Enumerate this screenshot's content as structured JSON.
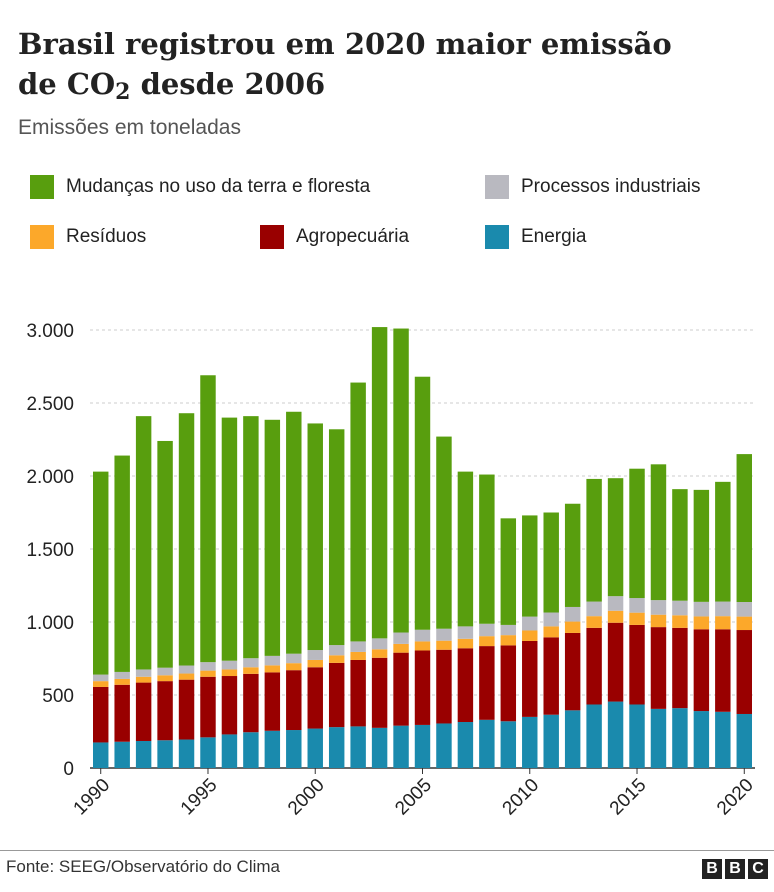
{
  "header": {
    "title_line1": "Brasil registrou em 2020 maior emissão",
    "title_line2_pre": "de CO",
    "title_line2_sub": "2",
    "title_line2_post": " desde 2006",
    "subtitle": "Emissões em toneladas"
  },
  "legend": [
    {
      "label": "Mudanças no uso da terra e floresta",
      "color": "#589e0e"
    },
    {
      "label": "Processos industriais",
      "color": "#b9b9c0"
    },
    {
      "label": "Resíduos",
      "color": "#fca82a"
    },
    {
      "label": "Agropecuária",
      "color": "#990000"
    },
    {
      "label": "Energia",
      "color": "#1a8aad"
    }
  ],
  "footer": {
    "source": "Fonte: SEEG/Observatório do Clima",
    "logo": [
      "B",
      "B",
      "C"
    ]
  },
  "chart_data": {
    "type": "bar",
    "stacked": true,
    "title": "Brasil registrou em 2020 maior emissão de CO2 desde 2006",
    "subtitle": "Emissões em toneladas",
    "ylim": [
      0,
      3000
    ],
    "yticks": [
      0,
      500,
      1000,
      1500,
      2000,
      2500,
      3000
    ],
    "ytick_labels": [
      "0",
      "500",
      "1.000",
      "1.500",
      "2.000",
      "2.500",
      "3.000"
    ],
    "xtick_labels": [
      "1990",
      "1995",
      "2000",
      "2005",
      "2010",
      "2015",
      "2020"
    ],
    "categories": [
      "1990",
      "1991",
      "1992",
      "1993",
      "1994",
      "1995",
      "1996",
      "1997",
      "1998",
      "1999",
      "2000",
      "2001",
      "2002",
      "2003",
      "2004",
      "2005",
      "2006",
      "2007",
      "2008",
      "2009",
      "2010",
      "2011",
      "2012",
      "2013",
      "2014",
      "2015",
      "2016",
      "2017",
      "2018",
      "2019",
      "2020"
    ],
    "series": [
      {
        "name": "Energia",
        "color": "#1a8aad",
        "values": [
          175,
          180,
          185,
          190,
          195,
          210,
          230,
          245,
          255,
          260,
          270,
          280,
          285,
          275,
          290,
          295,
          305,
          315,
          330,
          320,
          350,
          365,
          395,
          435,
          455,
          435,
          405,
          410,
          390,
          385,
          370
        ]
      },
      {
        "name": "Agropecuária",
        "color": "#990000",
        "values": [
          380,
          390,
          400,
          405,
          410,
          415,
          400,
          400,
          400,
          410,
          420,
          440,
          455,
          480,
          500,
          510,
          505,
          505,
          505,
          520,
          520,
          530,
          530,
          525,
          540,
          545,
          560,
          550,
          560,
          565,
          575
        ]
      },
      {
        "name": "Resíduos",
        "color": "#fca82a",
        "values": [
          40,
          40,
          40,
          40,
          42,
          42,
          45,
          45,
          48,
          48,
          50,
          52,
          55,
          58,
          60,
          62,
          62,
          65,
          68,
          70,
          72,
          75,
          78,
          80,
          82,
          84,
          85,
          86,
          88,
          90,
          92
        ]
      },
      {
        "name": "Processos industriais",
        "color": "#b9b9c0",
        "values": [
          45,
          48,
          50,
          52,
          55,
          58,
          60,
          62,
          65,
          65,
          68,
          70,
          72,
          75,
          78,
          80,
          82,
          85,
          85,
          70,
          95,
          95,
          100,
          100,
          100,
          100,
          100,
          100,
          100,
          100,
          100
        ]
      },
      {
        "name": "Mudanças no uso da terra e floresta",
        "color": "#589e0e",
        "values": [
          1390,
          1482,
          1735,
          1553,
          1728,
          1965,
          1665,
          1658,
          1617,
          1657,
          1552,
          1478,
          1773,
          2132,
          2082,
          1733,
          1316,
          1060,
          1022,
          730,
          693,
          685,
          707,
          840,
          808,
          886,
          930,
          764,
          767,
          820,
          1013
        ]
      }
    ],
    "totals": [
      2030,
      2140,
      2410,
      2240,
      2430,
      2690,
      2400,
      2410,
      2385,
      2440,
      2360,
      2320,
      2640,
      3020,
      3010,
      2680,
      2270,
      2030,
      2010,
      1710,
      1730,
      1750,
      1810,
      1980,
      1985,
      2050,
      2080,
      1910,
      1905,
      1960,
      2150
    ],
    "grid": true
  }
}
